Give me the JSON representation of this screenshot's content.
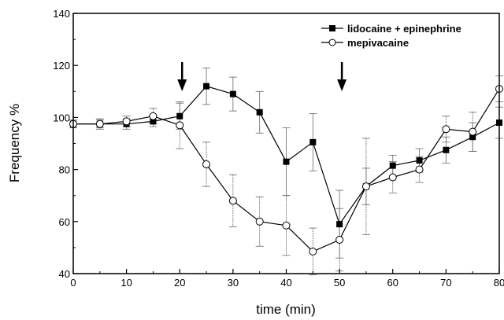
{
  "chart_data": {
    "type": "line",
    "xlabel": "time (min)",
    "ylabel": "Frequency %",
    "xlim": [
      0,
      80
    ],
    "ylim": [
      40,
      140
    ],
    "x_ticks": [
      0,
      10,
      20,
      30,
      40,
      50,
      60,
      70,
      80
    ],
    "y_ticks": [
      40,
      60,
      80,
      100,
      120,
      140
    ],
    "x_tick_labels": [
      "0",
      "10",
      "20",
      "30",
      "40",
      "50",
      "60",
      "70",
      "80"
    ],
    "y_tick_labels": [
      "40",
      "60",
      "80",
      "100",
      "120",
      "140"
    ],
    "grid": false,
    "legend_position": "top-right",
    "arrows_at_x": [
      20,
      50
    ],
    "series": [
      {
        "name": "lidocaine + epinephrine",
        "marker": "filled-square",
        "color": "#000000",
        "x": [
          0,
          5,
          10,
          15,
          20,
          25,
          30,
          35,
          40,
          45,
          50,
          55,
          60,
          65,
          70,
          75,
          80
        ],
        "values": [
          97.5,
          97.5,
          97.5,
          98.5,
          100.5,
          112,
          109,
          102,
          83,
          90.5,
          59,
          73.5,
          81.5,
          83.5,
          87.5,
          92.5,
          98
        ],
        "error": [
          1.5,
          1.5,
          2,
          2,
          5,
          7,
          6.5,
          8,
          13,
          11,
          13,
          7,
          4,
          4.5,
          5,
          5.5,
          6
        ]
      },
      {
        "name": "mepivacaine",
        "marker": "open-circle",
        "color": "#000000",
        "x": [
          0,
          5,
          10,
          15,
          20,
          25,
          30,
          35,
          40,
          45,
          50,
          55,
          60,
          65,
          70,
          75,
          80
        ],
        "values": [
          97.5,
          97.5,
          98.5,
          100.5,
          97,
          82,
          68,
          60,
          58.5,
          48.5,
          53,
          73.5,
          77,
          80,
          95.5,
          94.5,
          111
        ],
        "error": [
          1.5,
          2,
          2,
          3,
          9,
          8.5,
          10,
          9.5,
          11.5,
          9,
          12,
          18.5,
          6,
          5,
          5,
          7.5,
          5
        ]
      }
    ]
  }
}
